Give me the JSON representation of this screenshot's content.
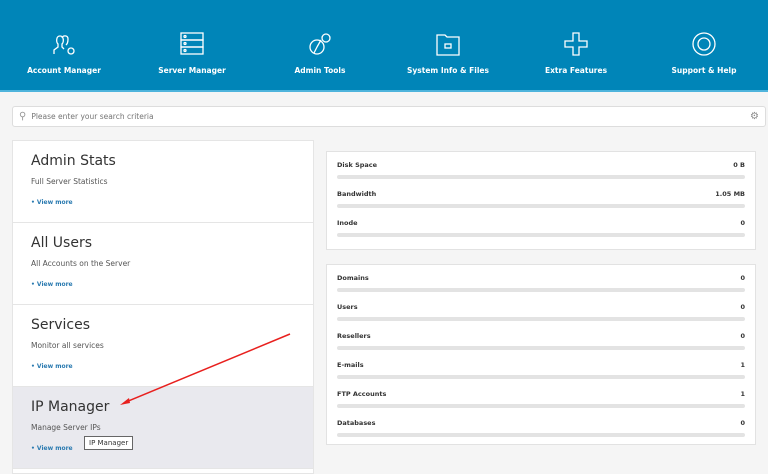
{
  "nav": [
    {
      "label": "Account Manager",
      "icon": "users-gear-icon"
    },
    {
      "label": "Server Manager",
      "icon": "server-icon"
    },
    {
      "label": "Admin Tools",
      "icon": "tools-icon"
    },
    {
      "label": "System Info & Files",
      "icon": "folder-icon"
    },
    {
      "label": "Extra Features",
      "icon": "plus-icon"
    },
    {
      "label": "Support & Help",
      "icon": "lifebuoy-icon"
    }
  ],
  "search": {
    "placeholder": "Please enter your search criteria"
  },
  "cards": [
    {
      "title": "Admin Stats",
      "desc": "Full Server Statistics",
      "link": "• View more"
    },
    {
      "title": "All Users",
      "desc": "All Accounts on the Server",
      "link": "• View more"
    },
    {
      "title": "Services",
      "desc": "Monitor all services",
      "link": "• View more"
    },
    {
      "title": "IP Manager",
      "desc": "Manage Server IPs",
      "link": "• View more"
    }
  ],
  "tooltip": "IP Manager",
  "usage": [
    {
      "label": "Disk Space",
      "value": "0 B",
      "fill": 0
    },
    {
      "label": "Bandwidth",
      "value": "1.05 MB",
      "fill": 0
    },
    {
      "label": "Inode",
      "value": "0",
      "fill": 0
    }
  ],
  "counts": [
    {
      "label": "Domains",
      "value": "0",
      "fill": 0
    },
    {
      "label": "Users",
      "value": "0",
      "fill": 0
    },
    {
      "label": "Resellers",
      "value": "0",
      "fill": 0
    },
    {
      "label": "E-mails",
      "value": "1",
      "fill": 0
    },
    {
      "label": "FTP Accounts",
      "value": "1",
      "fill": 0
    },
    {
      "label": "Databases",
      "value": "0",
      "fill": 0
    }
  ],
  "colors": {
    "header": "#0085b8",
    "arrow": "#e8201e"
  }
}
